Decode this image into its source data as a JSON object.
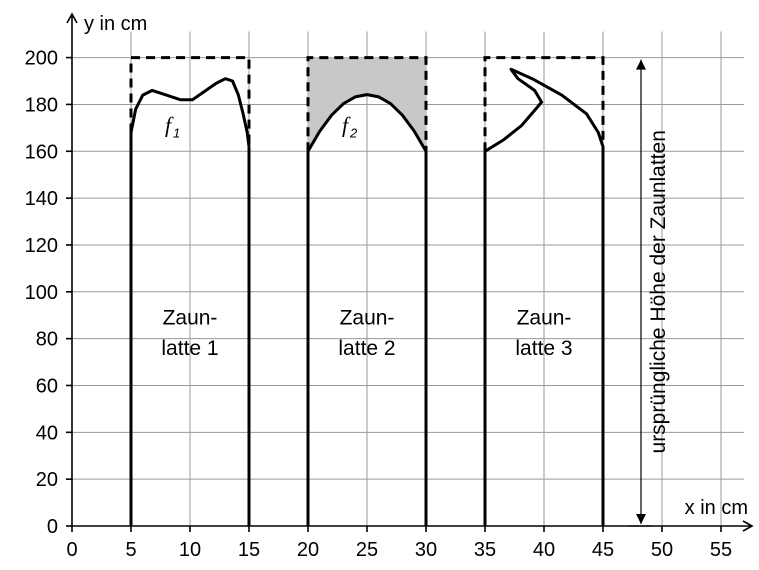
{
  "figure": {
    "x_axis_label": "x in cm",
    "y_axis_label": "y in cm",
    "x_ticks": [
      0,
      5,
      10,
      15,
      20,
      25,
      30,
      35,
      40,
      45,
      50,
      55
    ],
    "y_ticks": [
      0,
      20,
      40,
      60,
      80,
      100,
      120,
      140,
      160,
      180,
      200
    ],
    "x_range": [
      0,
      58
    ],
    "y_range": [
      0,
      212
    ],
    "grid": true,
    "original_height_label": "ursprüngliche Höhe der Zaunlatten",
    "original_height": 200,
    "slats": [
      {
        "name": "latte-1",
        "line1": "Zaun-",
        "line2": "latte 1",
        "x_left": 5,
        "x_right": 15,
        "function_label": "f",
        "function_sub": "1",
        "shaded": false,
        "curve": [
          [
            5,
            168
          ],
          [
            5.4,
            178
          ],
          [
            6,
            184
          ],
          [
            6.8,
            186
          ],
          [
            8,
            184
          ],
          [
            9.2,
            182
          ],
          [
            10.2,
            182
          ],
          [
            11.2,
            185.5
          ],
          [
            12.2,
            189
          ],
          [
            13,
            191
          ],
          [
            13.6,
            190
          ],
          [
            14.1,
            184
          ],
          [
            14.5,
            176
          ],
          [
            14.85,
            168
          ],
          [
            15,
            162
          ]
        ]
      },
      {
        "name": "latte-2",
        "line1": "Zaun-",
        "line2": "latte 2",
        "x_left": 20,
        "x_right": 30,
        "function_label": "f",
        "function_sub": "2",
        "shaded": true,
        "curve": [
          [
            20,
            160
          ],
          [
            21,
            168.6
          ],
          [
            22,
            175.4
          ],
          [
            23,
            180.3
          ],
          [
            24,
            183.2
          ],
          [
            25,
            184.2
          ],
          [
            26,
            183.2
          ],
          [
            27,
            180.3
          ],
          [
            28,
            175.4
          ],
          [
            29,
            168.6
          ],
          [
            30,
            160
          ]
        ]
      },
      {
        "name": "latte-3",
        "line1": "Zaun-",
        "line2": "latte 3",
        "x_left": 35,
        "x_right": 45,
        "function_label": "",
        "function_sub": "",
        "shaded": false,
        "curve": [
          [
            35,
            160
          ],
          [
            36.6,
            165
          ],
          [
            38.1,
            171
          ],
          [
            39.3,
            178
          ],
          [
            39.8,
            181
          ],
          [
            39.2,
            186
          ],
          [
            37.8,
            191
          ],
          [
            37.2,
            195
          ],
          [
            39,
            191
          ],
          [
            41.5,
            184
          ],
          [
            43.6,
            176
          ],
          [
            44.6,
            168
          ],
          [
            45,
            162
          ]
        ]
      }
    ]
  }
}
